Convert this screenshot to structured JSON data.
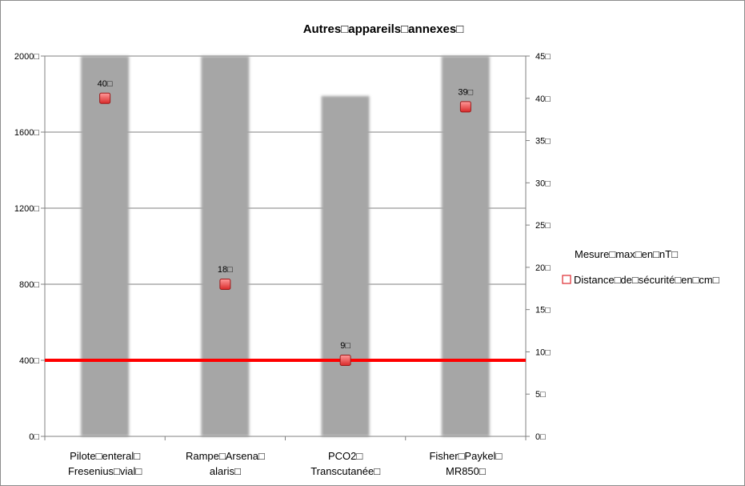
{
  "chart_data": {
    "type": "bar",
    "title": "Autres□appareils□annexes□",
    "categories": [
      [
        "Pilote□enteral□",
        "Fresenius□vial□"
      ],
      [
        "Rampe□Arsena□",
        "alaris□"
      ],
      [
        "PCO2□",
        "Transcutanée□"
      ],
      [
        "Fisher□Paykel□",
        "MR850□"
      ]
    ],
    "y_left": {
      "ylim": [
        0,
        2000
      ],
      "ticks": [
        0,
        400,
        800,
        1200,
        1600,
        2000
      ],
      "tick_labels": [
        "0□",
        "400□",
        "800□",
        "1200□",
        "1600□",
        "2000□"
      ]
    },
    "y_right": {
      "ylim": [
        0,
        45
      ],
      "ticks": [
        0,
        5,
        10,
        15,
        20,
        25,
        30,
        35,
        40,
        45
      ],
      "tick_labels": [
        "0□",
        "5□",
        "10□",
        "15□",
        "20□",
        "25□",
        "30□",
        "35□",
        "40□",
        "45□"
      ]
    },
    "series": [
      {
        "name": "Mesure□max□en□nT□",
        "kind": "bar",
        "axis": "left",
        "values": [
          2000,
          2000,
          1790,
          2000
        ],
        "color": "#a6a6a6"
      },
      {
        "name": "Distance□de□sécurité□en□cm□",
        "kind": "marker",
        "axis": "right",
        "values": [
          40,
          18,
          9,
          39
        ],
        "data_labels": [
          "40□",
          "18□",
          "9□",
          "39□"
        ],
        "color": "#e0393e"
      }
    ],
    "reference_line": {
      "axis": "left",
      "value": 400,
      "color": "#ff0000"
    },
    "grid": true,
    "legend_position": "right"
  }
}
